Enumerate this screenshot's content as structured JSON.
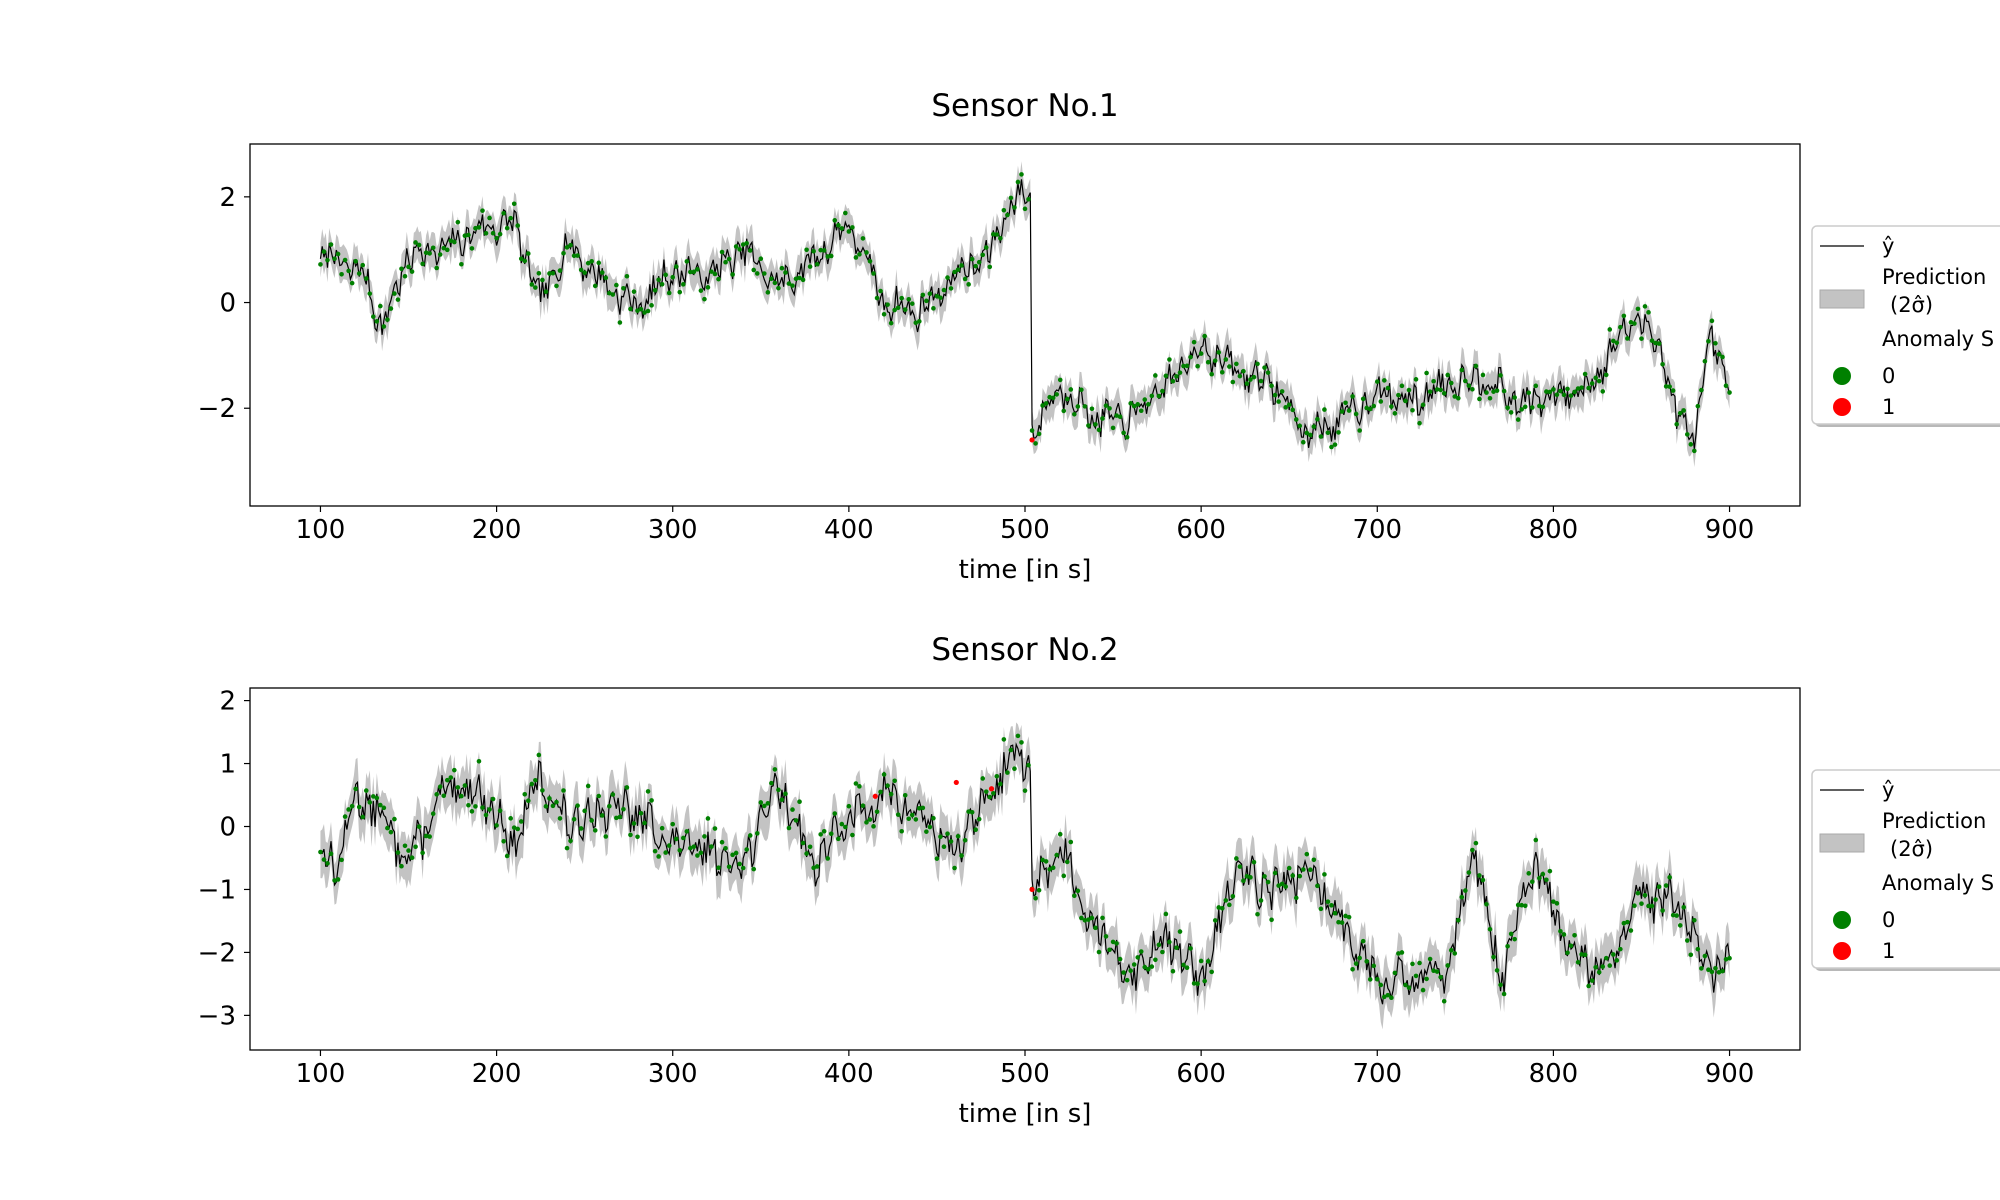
{
  "chart_data": [
    {
      "type": "line",
      "title": "Sensor No.1",
      "xlabel": "time [in s]",
      "ylabel": "",
      "xlim": [
        60,
        940
      ],
      "ylim": [
        -3.85,
        3.0
      ],
      "xticks": [
        100,
        200,
        300,
        400,
        500,
        600,
        700,
        800,
        900
      ],
      "yticks": [
        -2,
        0,
        2
      ],
      "x_range": [
        100,
        900
      ],
      "band_halfwidth": 0.3,
      "level_segments": [
        {
          "x": [
            100,
            110,
            125,
            135,
            150,
            170,
            190,
            210,
            225,
            240,
            260,
            280,
            300,
            320,
            340,
            360,
            380,
            400,
            420,
            440,
            460,
            480,
            490,
            503
          ],
          "y": [
            0.9,
            0.8,
            0.5,
            -0.5,
            0.9,
            1.0,
            1.4,
            1.5,
            0.0,
            1.1,
            0.4,
            -0.1,
            0.6,
            0.5,
            1.0,
            0.3,
            0.8,
            1.5,
            0.0,
            -0.2,
            0.5,
            0.9,
            1.8,
            2.1
          ]
        },
        {
          "x": [
            505,
            520,
            540,
            560,
            580,
            600,
            620,
            640,
            660,
            680,
            700,
            720,
            740,
            760,
            780,
            800,
            820,
            845,
            860,
            870,
            880,
            890,
            900
          ],
          "y": [
            -2.4,
            -1.6,
            -2.2,
            -2.2,
            -1.6,
            -0.8,
            -1.3,
            -1.5,
            -2.5,
            -2.2,
            -1.7,
            -1.9,
            -1.5,
            -1.4,
            -1.9,
            -1.8,
            -1.6,
            -0.3,
            -0.7,
            -2.2,
            -2.5,
            -0.7,
            -1.6
          ]
        }
      ],
      "series": [
        {
          "name": "ŷ",
          "kind": "line",
          "color": "#000000"
        },
        {
          "name": "Prediction Interval (2σ̂)",
          "kind": "band",
          "color": "#a9a9a9"
        },
        {
          "name": "0",
          "kind": "points",
          "color": "#008000"
        },
        {
          "name": "1",
          "kind": "points",
          "color": "#ff0000",
          "points": [
            [
              504,
              -2.6
            ]
          ]
        }
      ],
      "legend": {
        "placement": "right",
        "line_label": "ŷ",
        "band_label_1": "Prediction",
        "band_label_2": "(2σ̂)",
        "anomaly_title": "Anomaly S",
        "class0": "0",
        "class1": "1"
      },
      "seed": 7,
      "noise": 0.22
    },
    {
      "type": "line",
      "title": "Sensor No.2",
      "xlabel": "time [in s]",
      "ylabel": "",
      "xlim": [
        60,
        940
      ],
      "ylim": [
        -3.55,
        2.2
      ],
      "xticks": [
        100,
        200,
        300,
        400,
        500,
        600,
        700,
        800,
        900
      ],
      "yticks": [
        -3,
        -2,
        -1,
        0,
        1,
        2
      ],
      "x_range": [
        100,
        900
      ],
      "band_halfwidth": 0.35,
      "level_segments": [
        {
          "x": [
            100,
            110,
            120,
            130,
            150,
            170,
            190,
            210,
            225,
            240,
            260,
            280,
            300,
            320,
            340,
            360,
            380,
            400,
            420,
            440,
            460,
            480,
            495,
            503
          ],
          "y": [
            -0.4,
            -0.6,
            0.5,
            0.3,
            -0.5,
            0.5,
            0.6,
            -0.3,
            0.8,
            0.0,
            0.3,
            0.2,
            -0.3,
            -0.4,
            -0.6,
            0.7,
            -0.6,
            0.1,
            0.5,
            0.2,
            -0.4,
            0.5,
            1.2,
            0.9
          ]
        },
        {
          "x": [
            505,
            520,
            540,
            560,
            580,
            600,
            620,
            640,
            660,
            680,
            700,
            720,
            740,
            755,
            770,
            790,
            810,
            830,
            850,
            870,
            890,
            900
          ],
          "y": [
            -1.0,
            -0.3,
            -1.6,
            -2.4,
            -1.7,
            -2.5,
            -0.7,
            -1.0,
            -0.7,
            -1.5,
            -2.4,
            -2.5,
            -2.2,
            -0.4,
            -2.4,
            -0.6,
            -2.1,
            -2.3,
            -1.1,
            -1.2,
            -2.3,
            -2.1
          ]
        }
      ],
      "series": [
        {
          "name": "ŷ",
          "kind": "line",
          "color": "#000000"
        },
        {
          "name": "Prediction Interval (2σ̂)",
          "kind": "band",
          "color": "#a9a9a9"
        },
        {
          "name": "0",
          "kind": "points",
          "color": "#008000"
        },
        {
          "name": "1",
          "kind": "points",
          "color": "#ff0000",
          "points": [
            [
              415,
              0.48
            ],
            [
              461,
              0.7
            ],
            [
              481,
              0.6
            ],
            [
              504,
              -1.0
            ]
          ]
        }
      ],
      "legend": {
        "placement": "right",
        "line_label": "ŷ",
        "band_label_1": "Prediction",
        "band_label_2": "(2σ̂)",
        "anomaly_title": "Anomaly S",
        "class0": "0",
        "class1": "1"
      },
      "seed": 13,
      "noise": 0.25
    }
  ]
}
